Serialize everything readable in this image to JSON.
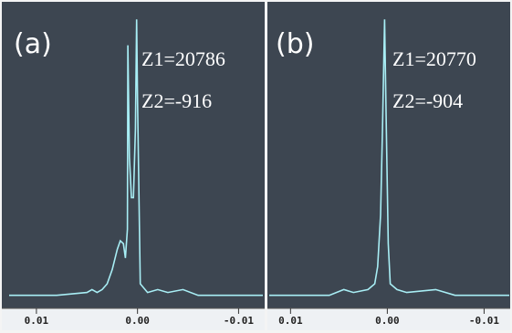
{
  "chart_data": [
    {
      "type": "line",
      "annotations": [
        "(a)",
        "Z1=20786",
        "Z2=-916"
      ],
      "x": [
        0.0127,
        0.008,
        0.005,
        0.0045,
        0.004,
        0.0035,
        0.003,
        0.0025,
        0.002,
        0.0017,
        0.0014,
        0.0012,
        0.001,
        0.00095,
        0.0008,
        0.0006,
        0.0004,
        0.0002,
        9e-05,
        0.0,
        -0.00027,
        -0.001,
        -0.002,
        -0.003,
        -0.0045,
        -0.006,
        -0.0124
      ],
      "series": [
        {
          "color": "#a8eef5",
          "values": [
            2,
            2,
            3,
            4,
            3,
            4,
            6,
            11,
            18,
            21,
            20,
            15,
            25,
            89,
            50,
            36,
            36,
            60,
            98,
            70,
            6,
            3,
            4,
            3,
            4,
            2,
            2
          ]
        }
      ],
      "xlim": [
        0.0127,
        -0.0124
      ],
      "xticks": [
        0.01,
        {
          "value": 0,
          "label": "0.00"
        },
        -0.01
      ],
      "ylim": [
        0,
        100
      ]
    },
    {
      "type": "line",
      "annotations": [
        "(b)",
        "Z1=20770",
        "Z2=-904"
      ],
      "x": [
        0.0122,
        0.006,
        0.0045,
        0.0035,
        0.002,
        0.0013,
        0.001,
        0.0007,
        0.0005,
        0.00028,
        0.0001,
        -0.0001,
        -0.0003,
        -0.001,
        -0.002,
        -0.005,
        -0.007,
        -0.0126
      ],
      "series": [
        {
          "color": "#a8eef5",
          "values": [
            2,
            2,
            4,
            3,
            4,
            6,
            12,
            30,
            60,
            98,
            60,
            20,
            6,
            4,
            3,
            4,
            2,
            2
          ]
        }
      ],
      "xlim": [
        0.0122,
        -0.0126
      ],
      "xticks": [
        0.01,
        {
          "value": 0,
          "label": "0.00"
        },
        -0.01
      ],
      "ylim": [
        0,
        100
      ]
    }
  ]
}
